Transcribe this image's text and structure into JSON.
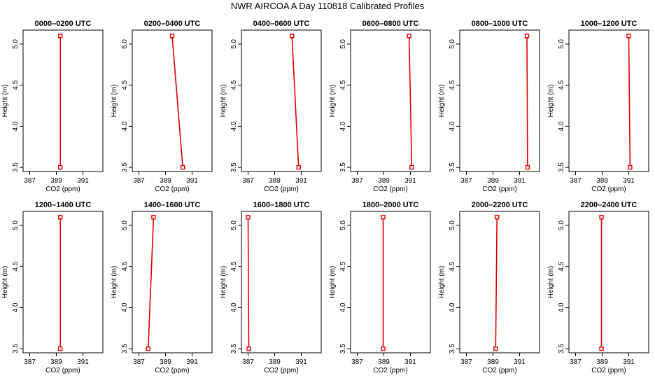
{
  "figure": {
    "title": "NWR AIRCOA A  Day 110818  Calibrated Profiles"
  },
  "colors": {
    "line": "#e00000",
    "marker": "#e00000",
    "axis": "#000000"
  },
  "chart_data": [
    {
      "type": "line",
      "title": "0000–0200 UTC",
      "xlabel": "CO2 (ppm)",
      "ylabel": "Height (m)",
      "xlim": [
        386.5,
        392.5
      ],
      "ylim": [
        3.45,
        5.17
      ],
      "xticks": [
        387,
        389,
        391
      ],
      "xtick_labels": [
        "387",
        "389",
        "391"
      ],
      "yticks": [
        3.5,
        4.0,
        4.5,
        5.0
      ],
      "ytick_labels": [
        "3.5",
        "4.0",
        "4.5",
        "5.0"
      ],
      "series": [
        {
          "x": [
            389.3,
            389.3
          ],
          "y": [
            3.5,
            5.1
          ]
        }
      ]
    },
    {
      "type": "line",
      "title": "0200–0400 UTC",
      "xlabel": "CO2 (ppm)",
      "ylabel": "Height (m)",
      "xlim": [
        386.5,
        392.5
      ],
      "ylim": [
        3.45,
        5.17
      ],
      "xticks": [
        387,
        389,
        391
      ],
      "xtick_labels": [
        "387",
        "389",
        "391"
      ],
      "yticks": [
        3.5,
        4.0,
        4.5,
        5.0
      ],
      "ytick_labels": [
        "3.5",
        "4.0",
        "4.5",
        "5.0"
      ],
      "series": [
        {
          "x": [
            390.3,
            389.5
          ],
          "y": [
            3.5,
            5.1
          ]
        }
      ]
    },
    {
      "type": "line",
      "title": "0400–0600 UTC",
      "xlabel": "CO2 (ppm)",
      "ylabel": "Height (m)",
      "xlim": [
        386.5,
        392.5
      ],
      "ylim": [
        3.45,
        5.17
      ],
      "xticks": [
        387,
        389,
        391
      ],
      "xtick_labels": [
        "387",
        "389",
        "391"
      ],
      "yticks": [
        3.5,
        4.0,
        4.5,
        5.0
      ],
      "ytick_labels": [
        "3.5",
        "4.0",
        "4.5",
        "5.0"
      ],
      "series": [
        {
          "x": [
            390.8,
            390.3
          ],
          "y": [
            3.5,
            5.1
          ]
        }
      ]
    },
    {
      "type": "line",
      "title": "0600–0800 UTC",
      "xlabel": "CO2 (ppm)",
      "ylabel": "Height (m)",
      "xlim": [
        386.5,
        392.5
      ],
      "ylim": [
        3.45,
        5.17
      ],
      "xticks": [
        387,
        389,
        391
      ],
      "xtick_labels": [
        "387",
        "389",
        "391"
      ],
      "yticks": [
        3.5,
        4.0,
        4.5,
        5.0
      ],
      "ytick_labels": [
        "3.5",
        "4.0",
        "4.5",
        "5.0"
      ],
      "series": [
        {
          "x": [
            391.1,
            390.9
          ],
          "y": [
            3.5,
            5.1
          ]
        }
      ]
    },
    {
      "type": "line",
      "title": "0800–1000 UTC",
      "xlabel": "CO2 (ppm)",
      "ylabel": "Height (m)",
      "xlim": [
        386.5,
        392.5
      ],
      "ylim": [
        3.45,
        5.17
      ],
      "xticks": [
        387,
        389,
        391
      ],
      "xtick_labels": [
        "387",
        "389",
        "391"
      ],
      "yticks": [
        3.5,
        4.0,
        4.5,
        5.0
      ],
      "ytick_labels": [
        "3.5",
        "4.0",
        "4.5",
        "5.0"
      ],
      "series": [
        {
          "x": [
            391.6,
            391.55
          ],
          "y": [
            3.5,
            5.1
          ]
        }
      ]
    },
    {
      "type": "line",
      "title": "1000–1200 UTC",
      "xlabel": "CO2 (ppm)",
      "ylabel": "Height (m)",
      "xlim": [
        386.5,
        392.5
      ],
      "ylim": [
        3.45,
        5.17
      ],
      "xticks": [
        387,
        389,
        391
      ],
      "xtick_labels": [
        "387",
        "389",
        "391"
      ],
      "yticks": [
        3.5,
        4.0,
        4.5,
        5.0
      ],
      "ytick_labels": [
        "3.5",
        "4.0",
        "4.5",
        "5.0"
      ],
      "series": [
        {
          "x": [
            391.1,
            391.0
          ],
          "y": [
            3.5,
            5.1
          ]
        }
      ]
    },
    {
      "type": "line",
      "title": "1200–1400 UTC",
      "xlabel": "CO2 (ppm)",
      "ylabel": "Height (m)",
      "xlim": [
        386.5,
        392.5
      ],
      "ylim": [
        3.45,
        5.17
      ],
      "xticks": [
        387,
        389,
        391
      ],
      "xtick_labels": [
        "387",
        "389",
        "391"
      ],
      "yticks": [
        3.5,
        4.0,
        4.5,
        5.0
      ],
      "ytick_labels": [
        "3.5",
        "4.0",
        "4.5",
        "5.0"
      ],
      "series": [
        {
          "x": [
            389.3,
            389.3
          ],
          "y": [
            3.5,
            5.1
          ]
        }
      ]
    },
    {
      "type": "line",
      "title": "1400–1600 UTC",
      "xlabel": "CO2 (ppm)",
      "ylabel": "Height (m)",
      "xlim": [
        386.5,
        392.5
      ],
      "ylim": [
        3.45,
        5.17
      ],
      "xticks": [
        387,
        389,
        391
      ],
      "xtick_labels": [
        "387",
        "389",
        "391"
      ],
      "yticks": [
        3.5,
        4.0,
        4.5,
        5.0
      ],
      "ytick_labels": [
        "3.5",
        "4.0",
        "4.5",
        "5.0"
      ],
      "series": [
        {
          "x": [
            387.7,
            388.1
          ],
          "y": [
            3.5,
            5.1
          ]
        }
      ]
    },
    {
      "type": "line",
      "title": "1600–1800 UTC",
      "xlabel": "CO2 (ppm)",
      "ylabel": "Height (m)",
      "xlim": [
        386.5,
        392.5
      ],
      "ylim": [
        3.45,
        5.17
      ],
      "xticks": [
        387,
        389,
        391
      ],
      "xtick_labels": [
        "387",
        "389",
        "391"
      ],
      "yticks": [
        3.5,
        4.0,
        4.5,
        5.0
      ],
      "ytick_labels": [
        "3.5",
        "4.0",
        "4.5",
        "5.0"
      ],
      "series": [
        {
          "x": [
            387.05,
            387.0
          ],
          "y": [
            3.5,
            5.1
          ]
        }
      ]
    },
    {
      "type": "line",
      "title": "1800–2000 UTC",
      "xlabel": "CO2 (ppm)",
      "ylabel": "Height (m)",
      "xlim": [
        386.5,
        392.5
      ],
      "ylim": [
        3.45,
        5.17
      ],
      "xticks": [
        387,
        389,
        391
      ],
      "xtick_labels": [
        "387",
        "389",
        "391"
      ],
      "yticks": [
        3.5,
        4.0,
        4.5,
        5.0
      ],
      "ytick_labels": [
        "3.5",
        "4.0",
        "4.5",
        "5.0"
      ],
      "series": [
        {
          "x": [
            388.95,
            388.95
          ],
          "y": [
            3.5,
            5.1
          ]
        }
      ]
    },
    {
      "type": "line",
      "title": "2000–2200 UTC",
      "xlabel": "CO2 (ppm)",
      "ylabel": "Height (m)",
      "xlim": [
        386.5,
        392.5
      ],
      "ylim": [
        3.45,
        5.17
      ],
      "xticks": [
        387,
        389,
        391
      ],
      "xtick_labels": [
        "387",
        "389",
        "391"
      ],
      "yticks": [
        3.5,
        4.0,
        4.5,
        5.0
      ],
      "ytick_labels": [
        "3.5",
        "4.0",
        "4.5",
        "5.0"
      ],
      "series": [
        {
          "x": [
            389.2,
            389.3
          ],
          "y": [
            3.5,
            5.1
          ]
        }
      ]
    },
    {
      "type": "line",
      "title": "2200–2400 UTC",
      "xlabel": "CO2 (ppm)",
      "ylabel": "Height (m)",
      "xlim": [
        386.5,
        392.5
      ],
      "ylim": [
        3.45,
        5.17
      ],
      "xticks": [
        387,
        389,
        391
      ],
      "xtick_labels": [
        "387",
        "389",
        "391"
      ],
      "yticks": [
        3.5,
        4.0,
        4.5,
        5.0
      ],
      "ytick_labels": [
        "3.5",
        "4.0",
        "4.5",
        "5.0"
      ],
      "series": [
        {
          "x": [
            388.95,
            388.95
          ],
          "y": [
            3.5,
            5.1
          ]
        }
      ]
    }
  ]
}
